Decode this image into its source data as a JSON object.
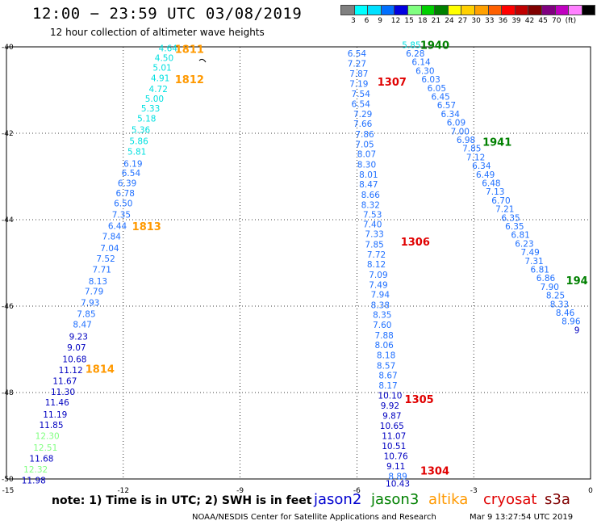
{
  "header": {
    "title": "12:00 − 23:59 UTC 03/08/2019",
    "subtitle": "12 hour collection of altimeter wave heights"
  },
  "colorbar": {
    "colors": [
      "#808080",
      "#00ffff",
      "#00e0ff",
      "#0070ff",
      "#0000e0",
      "#80ff80",
      "#00d000",
      "#008000",
      "#ffff00",
      "#ffd000",
      "#ffa000",
      "#ff6000",
      "#ff0000",
      "#c00000",
      "#800000",
      "#800080",
      "#c000c0",
      "#ff80ff",
      "#000000"
    ],
    "labels": [
      "3",
      "6",
      "9",
      "12",
      "15",
      "18",
      "21",
      "24",
      "27",
      "30",
      "33",
      "36",
      "39",
      "42",
      "45",
      "70",
      "(ft)"
    ]
  },
  "axes": {
    "x_ticks": [
      "-15",
      "-12",
      "-9",
      "-6",
      "-3",
      "0"
    ],
    "y_ticks": [
      "-40",
      "-42",
      "-44",
      "-46",
      "-48",
      "-50"
    ]
  },
  "map_data": {
    "region": {
      "lon_min": -15,
      "lon_max": 0,
      "lat_min": -50,
      "lat_max": -40
    },
    "swh_color_scale": {
      "bounds": [
        3,
        6,
        9,
        12,
        15
      ],
      "colors": [
        "#00ffff",
        "#00e0e0",
        "#2070ff",
        "#0000c0",
        "#80ff80",
        "#00c000"
      ]
    },
    "pass_labels": [
      {
        "text": "1811",
        "lon": -10.3,
        "lat": -40.05,
        "color": "#ff9900"
      },
      {
        "text": "1812",
        "lon": -10.3,
        "lat": -40.75,
        "color": "#ff9900"
      },
      {
        "text": "1813",
        "lon": -11.4,
        "lat": -44.15,
        "color": "#ff9900"
      },
      {
        "text": "1814",
        "lon": -12.6,
        "lat": -47.45,
        "color": "#ff9900"
      },
      {
        "text": "1940",
        "lon": -4.0,
        "lat": -39.95,
        "color": "#008000"
      },
      {
        "text": "1941",
        "lon": -2.4,
        "lat": -42.2,
        "color": "#008000"
      },
      {
        "text": "194",
        "lon": -0.35,
        "lat": -45.4,
        "color": "#008000"
      },
      {
        "text": "1307",
        "lon": -5.1,
        "lat": -40.8,
        "color": "#e00000"
      },
      {
        "text": "1306",
        "lon": -4.5,
        "lat": -44.5,
        "color": "#e00000"
      },
      {
        "text": "1305",
        "lon": -4.4,
        "lat": -48.15,
        "color": "#e00000"
      },
      {
        "text": "1304",
        "lon": -4.0,
        "lat": -49.8,
        "color": "#e00000"
      }
    ],
    "tracks": [
      {
        "satellite": "altika",
        "points": [
          {
            "lon": -10.85,
            "lat": -40.03,
            "v": "4.64"
          },
          {
            "lon": -10.95,
            "lat": -40.25,
            "v": "4.50"
          },
          {
            "lon": -11.0,
            "lat": -40.48,
            "v": "5.01"
          },
          {
            "lon": -11.05,
            "lat": -40.72,
            "v": "4.91"
          },
          {
            "lon": -11.1,
            "lat": -40.97,
            "v": "4.72"
          },
          {
            "lon": -11.2,
            "lat": -41.2,
            "v": "5.00"
          },
          {
            "lon": -11.3,
            "lat": -41.42,
            "v": "5.33"
          },
          {
            "lon": -11.4,
            "lat": -41.65,
            "v": "5.18"
          },
          {
            "lon": -11.55,
            "lat": -41.92,
            "v": "5.36"
          },
          {
            "lon": -11.6,
            "lat": -42.18,
            "v": "5.86"
          },
          {
            "lon": -11.65,
            "lat": -42.42,
            "v": "5.81"
          },
          {
            "lon": -11.75,
            "lat": -42.7,
            "v": "6.19"
          },
          {
            "lon": -11.8,
            "lat": -42.92,
            "v": "6.54"
          },
          {
            "lon": -11.9,
            "lat": -43.15,
            "v": "6.39"
          },
          {
            "lon": -11.95,
            "lat": -43.38,
            "v": "6.78"
          },
          {
            "lon": -12.0,
            "lat": -43.62,
            "v": "6.50"
          },
          {
            "lon": -12.05,
            "lat": -43.88,
            "v": "7.35"
          },
          {
            "lon": -12.15,
            "lat": -44.14,
            "v": "6.44"
          },
          {
            "lon": -12.3,
            "lat": -44.38,
            "v": "7.84"
          },
          {
            "lon": -12.35,
            "lat": -44.65,
            "v": "7.04"
          },
          {
            "lon": -12.45,
            "lat": -44.9,
            "v": "7.52"
          },
          {
            "lon": -12.55,
            "lat": -45.15,
            "v": "7.71"
          },
          {
            "lon": -12.65,
            "lat": -45.42,
            "v": "8.13"
          },
          {
            "lon": -12.75,
            "lat": -45.65,
            "v": "7.79"
          },
          {
            "lon": -12.85,
            "lat": -45.92,
            "v": "7.93"
          },
          {
            "lon": -12.95,
            "lat": -46.18,
            "v": "7.85"
          },
          {
            "lon": -13.05,
            "lat": -46.42,
            "v": "8.47"
          },
          {
            "lon": -13.15,
            "lat": -46.7,
            "v": "9.23"
          },
          {
            "lon": -13.2,
            "lat": -46.95,
            "v": "9.07"
          },
          {
            "lon": -13.25,
            "lat": -47.22,
            "v": "10.68"
          },
          {
            "lon": -13.35,
            "lat": -47.48,
            "v": "11.12"
          },
          {
            "lon": -13.5,
            "lat": -47.73,
            "v": "11.67"
          },
          {
            "lon": -13.55,
            "lat": -47.98,
            "v": "11.30"
          },
          {
            "lon": -13.7,
            "lat": -48.22,
            "v": "11.46"
          },
          {
            "lon": -13.75,
            "lat": -48.5,
            "v": "11.19"
          },
          {
            "lon": -13.85,
            "lat": -48.75,
            "v": "11.85"
          },
          {
            "lon": -13.95,
            "lat": -49.0,
            "v": "12.30"
          },
          {
            "lon": -14.0,
            "lat": -49.27,
            "v": "12.51"
          },
          {
            "lon": -14.1,
            "lat": -49.52,
            "v": "11.68"
          },
          {
            "lon": -14.25,
            "lat": -49.78,
            "v": "12.32"
          },
          {
            "lon": -14.3,
            "lat": -50.03,
            "v": "11.98"
          }
        ]
      },
      {
        "satellite": "cryosat",
        "points": [
          {
            "lon": -6.0,
            "lat": -40.15,
            "v": "6.54"
          },
          {
            "lon": -6.0,
            "lat": -40.38,
            "v": "7.27"
          },
          {
            "lon": -5.95,
            "lat": -40.62,
            "v": "7.87"
          },
          {
            "lon": -5.95,
            "lat": -40.85,
            "v": "7.19"
          },
          {
            "lon": -5.9,
            "lat": -41.08,
            "v": "7.54"
          },
          {
            "lon": -5.9,
            "lat": -41.32,
            "v": "6.54"
          },
          {
            "lon": -5.85,
            "lat": -41.55,
            "v": "7.29"
          },
          {
            "lon": -5.85,
            "lat": -41.78,
            "v": "7.66"
          },
          {
            "lon": -5.8,
            "lat": -42.02,
            "v": "7.86"
          },
          {
            "lon": -5.8,
            "lat": -42.25,
            "v": "7.05"
          },
          {
            "lon": -5.75,
            "lat": -42.48,
            "v": "8.07"
          },
          {
            "lon": -5.75,
            "lat": -42.72,
            "v": "8.30"
          },
          {
            "lon": -5.7,
            "lat": -42.95,
            "v": "8.01"
          },
          {
            "lon": -5.7,
            "lat": -43.18,
            "v": "8.47"
          },
          {
            "lon": -5.65,
            "lat": -43.42,
            "v": "8.66"
          },
          {
            "lon": -5.65,
            "lat": -43.65,
            "v": "8.32"
          },
          {
            "lon": -5.6,
            "lat": -43.88,
            "v": "7.53"
          },
          {
            "lon": -5.6,
            "lat": -44.1,
            "v": "7.40"
          },
          {
            "lon": -5.55,
            "lat": -44.33,
            "v": "7.33"
          },
          {
            "lon": -5.55,
            "lat": -44.57,
            "v": "7.85"
          },
          {
            "lon": -5.5,
            "lat": -44.8,
            "v": "7.72"
          },
          {
            "lon": -5.5,
            "lat": -45.03,
            "v": "8.12"
          },
          {
            "lon": -5.45,
            "lat": -45.27,
            "v": "7.09"
          },
          {
            "lon": -5.45,
            "lat": -45.5,
            "v": "7.49"
          },
          {
            "lon": -5.4,
            "lat": -45.73,
            "v": "7.94"
          },
          {
            "lon": -5.4,
            "lat": -45.97,
            "v": "8.38"
          },
          {
            "lon": -5.35,
            "lat": -46.2,
            "v": "8.35"
          },
          {
            "lon": -5.35,
            "lat": -46.43,
            "v": "7.60"
          },
          {
            "lon": -5.3,
            "lat": -46.67,
            "v": "7.88"
          },
          {
            "lon": -5.3,
            "lat": -46.9,
            "v": "8.06"
          },
          {
            "lon": -5.25,
            "lat": -47.13,
            "v": "8.18"
          },
          {
            "lon": -5.25,
            "lat": -47.37,
            "v": "8.57"
          },
          {
            "lon": -5.2,
            "lat": -47.6,
            "v": "8.67"
          },
          {
            "lon": -5.2,
            "lat": -47.83,
            "v": "8.17"
          },
          {
            "lon": -5.15,
            "lat": -48.07,
            "v": "10.10"
          },
          {
            "lon": -5.15,
            "lat": -48.3,
            "v": "9.92"
          },
          {
            "lon": -5.1,
            "lat": -48.53,
            "v": "9.87"
          },
          {
            "lon": -5.1,
            "lat": -48.77,
            "v": "10.65"
          },
          {
            "lon": -5.05,
            "lat": -49.0,
            "v": "11.07"
          },
          {
            "lon": -5.05,
            "lat": -49.23,
            "v": "10.51"
          },
          {
            "lon": -5.0,
            "lat": -49.47,
            "v": "10.76"
          },
          {
            "lon": -5.0,
            "lat": -49.7,
            "v": "9.11"
          },
          {
            "lon": -4.95,
            "lat": -49.93,
            "v": "8.89"
          },
          {
            "lon": -4.95,
            "lat": -50.1,
            "v": "10.43"
          }
        ]
      },
      {
        "satellite": "jason3",
        "points": [
          {
            "lon": -4.6,
            "lat": -39.95,
            "v": "5.85"
          },
          {
            "lon": -4.5,
            "lat": -40.15,
            "v": "6.28"
          },
          {
            "lon": -4.35,
            "lat": -40.35,
            "v": "6.14"
          },
          {
            "lon": -4.25,
            "lat": -40.55,
            "v": "6.30"
          },
          {
            "lon": -4.1,
            "lat": -40.75,
            "v": "6.03"
          },
          {
            "lon": -3.95,
            "lat": -40.95,
            "v": "6.05"
          },
          {
            "lon": -3.85,
            "lat": -41.15,
            "v": "6.45"
          },
          {
            "lon": -3.7,
            "lat": -41.35,
            "v": "6.57"
          },
          {
            "lon": -3.6,
            "lat": -41.55,
            "v": "6.34"
          },
          {
            "lon": -3.45,
            "lat": -41.75,
            "v": "6.09"
          },
          {
            "lon": -3.35,
            "lat": -41.95,
            "v": "7.00"
          },
          {
            "lon": -3.2,
            "lat": -42.15,
            "v": "6.98"
          },
          {
            "lon": -3.05,
            "lat": -42.35,
            "v": "7.85"
          },
          {
            "lon": -2.95,
            "lat": -42.55,
            "v": "7.12"
          },
          {
            "lon": -2.8,
            "lat": -42.75,
            "v": "6.34"
          },
          {
            "lon": -2.7,
            "lat": -42.95,
            "v": "6.49"
          },
          {
            "lon": -2.55,
            "lat": -43.15,
            "v": "6.48"
          },
          {
            "lon": -2.45,
            "lat": -43.35,
            "v": "7.13"
          },
          {
            "lon": -2.3,
            "lat": -43.55,
            "v": "6.70"
          },
          {
            "lon": -2.2,
            "lat": -43.75,
            "v": "7.21"
          },
          {
            "lon": -2.05,
            "lat": -43.95,
            "v": "6.35"
          },
          {
            "lon": -1.95,
            "lat": -44.15,
            "v": "6.35"
          },
          {
            "lon": -1.8,
            "lat": -44.35,
            "v": "6.81"
          },
          {
            "lon": -1.7,
            "lat": -44.55,
            "v": "6.23"
          },
          {
            "lon": -1.55,
            "lat": -44.75,
            "v": "7.49"
          },
          {
            "lon": -1.45,
            "lat": -44.95,
            "v": "7.31"
          },
          {
            "lon": -1.3,
            "lat": -45.15,
            "v": "6.81"
          },
          {
            "lon": -1.15,
            "lat": -45.35,
            "v": "6.86"
          },
          {
            "lon": -1.05,
            "lat": -45.55,
            "v": "7.90"
          },
          {
            "lon": -0.9,
            "lat": -45.75,
            "v": "8.25"
          },
          {
            "lon": -0.8,
            "lat": -45.95,
            "v": "8.33"
          },
          {
            "lon": -0.65,
            "lat": -46.15,
            "v": "8.46"
          },
          {
            "lon": -0.5,
            "lat": -46.35,
            "v": "8.96"
          },
          {
            "lon": -0.35,
            "lat": -46.55,
            "v": "9"
          }
        ]
      }
    ]
  },
  "footer": {
    "note": "note:  1) Time is in UTC;  2) SWH is in feet",
    "legend": [
      {
        "name": "jason2",
        "color": "#0000d0"
      },
      {
        "name": "jason3",
        "color": "#008000"
      },
      {
        "name": "altika",
        "color": "#ff9900"
      },
      {
        "name": "cryosat",
        "color": "#e00000"
      },
      {
        "name": "s3a",
        "color": "#800000"
      }
    ],
    "credit": "NOAA/NESDIS Center for Satellite Applications and Research",
    "timestamp": "Mar  9 13:27:54 UTC 2019"
  }
}
